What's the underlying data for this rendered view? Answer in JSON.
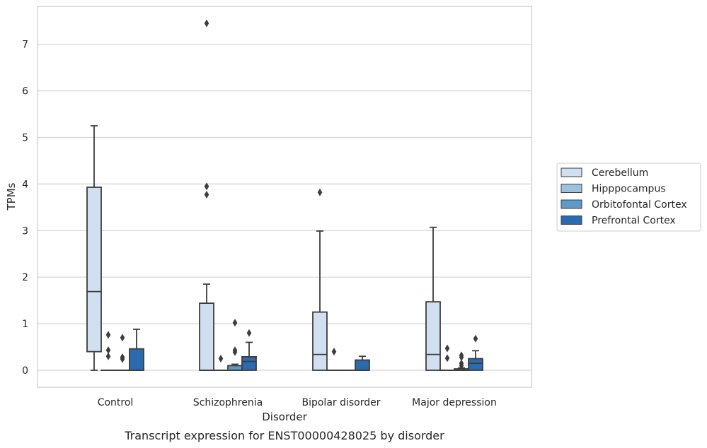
{
  "chart_data": {
    "type": "box",
    "title": "Transcript expression for ENST00000428025 by disorder",
    "xlabel": "Disorder",
    "ylabel": "TPMs",
    "ylim": [
      -0.36,
      7.85
    ],
    "yticks": [
      0,
      1,
      2,
      3,
      4,
      5,
      6,
      7
    ],
    "grid": true,
    "legend_position": "right",
    "categories": [
      "Control",
      "Schizophrenia",
      "Bipolar disorder",
      "Major depression"
    ],
    "series": [
      {
        "name": "Cerebellum",
        "color": "#d0e0f0",
        "boxes": [
          {
            "whislo": 0.0,
            "q1": 0.4,
            "med": 1.69,
            "q3": 3.93,
            "whishi": 5.25,
            "fliers": []
          },
          {
            "whislo": 0.0,
            "q1": 0.0,
            "med": 0.0,
            "q3": 1.44,
            "whishi": 1.85,
            "fliers": [
              3.77,
              3.95,
              7.45
            ]
          },
          {
            "whislo": 0.0,
            "q1": 0.0,
            "med": 0.34,
            "q3": 1.25,
            "whishi": 2.99,
            "fliers": [
              3.82
            ]
          },
          {
            "whislo": 0.0,
            "q1": 0.0,
            "med": 0.34,
            "q3": 1.47,
            "whishi": 3.07,
            "fliers": []
          }
        ]
      },
      {
        "name": "Hipppocampus",
        "color": "#9dc2de",
        "boxes": [
          {
            "whislo": 0.0,
            "q1": 0.0,
            "med": 0.0,
            "q3": 0.0,
            "whishi": 0.0,
            "fliers": [
              0.3,
              0.43,
              0.76
            ]
          },
          {
            "whislo": 0.0,
            "q1": 0.0,
            "med": 0.0,
            "q3": 0.0,
            "whishi": 0.0,
            "fliers": [
              0.25
            ]
          },
          {
            "whislo": 0.0,
            "q1": 0.0,
            "med": 0.0,
            "q3": 0.0,
            "whishi": 0.0,
            "fliers": [
              0.4
            ]
          },
          {
            "whislo": 0.0,
            "q1": 0.0,
            "med": 0.0,
            "q3": 0.0,
            "whishi": 0.0,
            "fliers": [
              0.26,
              0.47
            ]
          }
        ]
      },
      {
        "name": "Orbitofontal Cortex",
        "color": "#5b9ac9",
        "boxes": [
          {
            "whislo": 0.0,
            "q1": 0.0,
            "med": 0.0,
            "q3": 0.0,
            "whishi": 0.0,
            "fliers": [
              0.24,
              0.28,
              0.7
            ]
          },
          {
            "whislo": 0.0,
            "q1": 0.0,
            "med": 0.0,
            "q3": 0.1,
            "whishi": 0.13,
            "fliers": [
              0.39,
              0.43,
              1.02
            ]
          },
          {
            "whislo": 0.0,
            "q1": 0.0,
            "med": 0.0,
            "q3": 0.0,
            "whishi": 0.0,
            "fliers": []
          },
          {
            "whislo": 0.0,
            "q1": 0.0,
            "med": 0.0,
            "q3": 0.03,
            "whishi": 0.05,
            "fliers": [
              0.1,
              0.15,
              0.28,
              0.32
            ]
          }
        ]
      },
      {
        "name": "Prefrontal Cortex",
        "color": "#2a6aaf",
        "boxes": [
          {
            "whislo": 0.0,
            "q1": 0.0,
            "med": 0.0,
            "q3": 0.46,
            "whishi": 0.88,
            "fliers": []
          },
          {
            "whislo": 0.0,
            "q1": 0.0,
            "med": 0.19,
            "q3": 0.29,
            "whishi": 0.6,
            "fliers": [
              0.8
            ]
          },
          {
            "whislo": 0.0,
            "q1": 0.0,
            "med": 0.0,
            "q3": 0.22,
            "whishi": 0.3,
            "fliers": []
          },
          {
            "whislo": 0.0,
            "q1": 0.0,
            "med": 0.15,
            "q3": 0.25,
            "whishi": 0.42,
            "fliers": [
              0.68
            ]
          }
        ]
      }
    ]
  }
}
